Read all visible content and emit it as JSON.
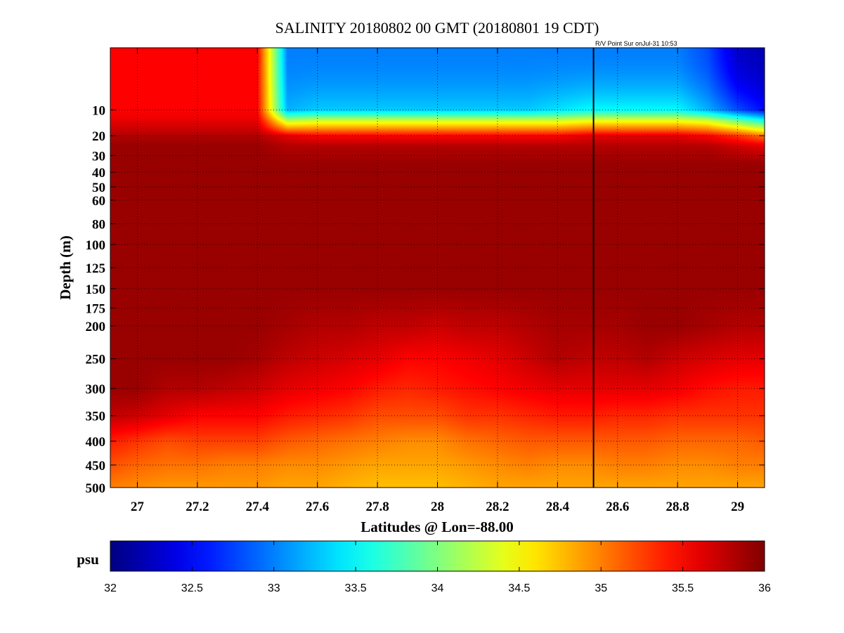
{
  "chart_data": {
    "type": "heatmap",
    "title": "SALINITY 20180802 00 GMT (20180801 19 CDT)",
    "annotation": "R/V Point Sur onJul-31 10:53",
    "xlabel": "Latitudes @ Lon=-88.00",
    "ylabel": "Depth (m)",
    "xlim": [
      26.91,
      29.09
    ],
    "ylim": [
      0,
      500
    ],
    "y_scale": "sqrt",
    "y_inverted": true,
    "grid": true,
    "x_ticks": [
      27,
      27.2,
      27.4,
      27.6,
      27.8,
      28,
      28.2,
      28.4,
      28.6,
      28.8,
      29
    ],
    "x_tick_labels": [
      "27",
      "27.2",
      "27.4",
      "27.6",
      "27.8",
      "28",
      "28.2",
      "28.4",
      "28.6",
      "28.8",
      "29"
    ],
    "y_ticks": [
      10,
      20,
      30,
      40,
      50,
      60,
      80,
      100,
      125,
      150,
      175,
      200,
      250,
      300,
      350,
      400,
      450,
      500
    ],
    "y_tick_labels": [
      "10",
      "20",
      "30",
      "40",
      "50",
      "60",
      "80",
      "100",
      "125",
      "150",
      "175",
      "200",
      "250",
      "300",
      "350",
      "400",
      "450",
      "500"
    ],
    "vertical_marker_lat": 28.52,
    "colorbar": {
      "label": "psu",
      "range": [
        32,
        36
      ],
      "colormap": "jet",
      "ticks": [
        32,
        32.5,
        33,
        33.5,
        34,
        34.5,
        35,
        35.5,
        36
      ],
      "tick_labels": [
        "32",
        "32.5",
        "33",
        "33.5",
        "34",
        "34.5",
        "35",
        "35.5",
        "36"
      ]
    },
    "grid_lats": [
      26.9,
      27.0,
      27.1,
      27.2,
      27.3,
      27.4,
      27.5,
      27.6,
      27.7,
      27.8,
      27.9,
      28.0,
      28.1,
      28.2,
      28.3,
      28.4,
      28.5,
      28.6,
      28.7,
      28.8,
      28.9,
      29.0,
      29.1
    ],
    "grid_depths": [
      0,
      10,
      14,
      20,
      25,
      35,
      50,
      100,
      150,
      200,
      250,
      300,
      350,
      400,
      450,
      500
    ],
    "salinity": [
      [
        35.5,
        35.5,
        35.5,
        35.5,
        35.5,
        35.5,
        33.0,
        33.0,
        33.0,
        33.0,
        33.0,
        33.0,
        33.0,
        33.0,
        33.0,
        33.0,
        33.0,
        33.0,
        33.0,
        33.0,
        32.8,
        32.3,
        32.2
      ],
      [
        35.5,
        35.5,
        35.5,
        35.5,
        35.5,
        35.5,
        33.2,
        33.3,
        33.3,
        33.3,
        33.3,
        33.3,
        33.3,
        33.3,
        33.3,
        33.4,
        33.5,
        33.5,
        33.5,
        33.5,
        33.2,
        32.8,
        32.5
      ],
      [
        35.6,
        35.6,
        35.6,
        35.6,
        35.6,
        35.6,
        34.3,
        34.4,
        34.4,
        34.4,
        34.4,
        34.4,
        34.4,
        34.4,
        34.4,
        34.4,
        34.5,
        34.5,
        34.5,
        34.5,
        34.4,
        34.0,
        33.6
      ],
      [
        35.8,
        35.8,
        35.8,
        35.8,
        35.8,
        35.8,
        35.6,
        35.5,
        35.5,
        35.5,
        35.5,
        35.5,
        35.5,
        35.5,
        35.5,
        35.5,
        35.6,
        35.6,
        35.6,
        35.6,
        35.5,
        35.3,
        35.0
      ],
      [
        35.9,
        35.9,
        35.9,
        35.9,
        35.9,
        35.9,
        35.8,
        35.8,
        35.8,
        35.8,
        35.8,
        35.8,
        35.8,
        35.8,
        35.8,
        35.8,
        35.8,
        35.8,
        35.8,
        35.8,
        35.8,
        35.7,
        35.6
      ],
      [
        35.9,
        35.9,
        35.9,
        35.9,
        35.9,
        35.9,
        35.9,
        35.9,
        35.9,
        35.9,
        35.9,
        35.9,
        35.9,
        35.9,
        35.9,
        35.9,
        35.9,
        35.9,
        35.9,
        35.9,
        35.9,
        35.9,
        35.9
      ],
      [
        35.9,
        35.9,
        35.9,
        35.9,
        35.9,
        35.9,
        35.9,
        35.9,
        35.9,
        35.9,
        35.9,
        35.9,
        35.9,
        35.9,
        35.9,
        35.9,
        35.9,
        35.9,
        35.9,
        35.9,
        35.9,
        35.9,
        35.9
      ],
      [
        35.9,
        35.9,
        35.9,
        35.9,
        35.9,
        35.9,
        35.9,
        35.9,
        35.9,
        35.9,
        35.9,
        35.9,
        35.9,
        35.9,
        35.9,
        35.9,
        35.9,
        35.9,
        35.9,
        35.9,
        35.9,
        35.9,
        35.9
      ],
      [
        35.9,
        35.9,
        35.9,
        35.9,
        35.9,
        35.9,
        35.9,
        35.9,
        35.9,
        35.9,
        35.9,
        35.9,
        35.9,
        35.9,
        35.9,
        35.9,
        35.9,
        35.9,
        35.9,
        35.9,
        35.9,
        35.9,
        35.9
      ],
      [
        35.9,
        35.9,
        35.9,
        35.9,
        35.9,
        35.9,
        35.85,
        35.8,
        35.8,
        35.75,
        35.75,
        35.7,
        35.75,
        35.75,
        35.8,
        35.85,
        35.85,
        35.85,
        35.9,
        35.9,
        35.85,
        35.8,
        35.8
      ],
      [
        35.9,
        35.9,
        35.9,
        35.9,
        35.9,
        35.85,
        35.75,
        35.7,
        35.65,
        35.6,
        35.5,
        35.5,
        35.55,
        35.6,
        35.7,
        35.8,
        35.75,
        35.75,
        35.8,
        35.7,
        35.65,
        35.6,
        35.6
      ],
      [
        35.9,
        35.9,
        35.8,
        35.8,
        35.75,
        35.7,
        35.6,
        35.55,
        35.5,
        35.4,
        35.35,
        35.4,
        35.45,
        35.5,
        35.55,
        35.6,
        35.6,
        35.6,
        35.6,
        35.55,
        35.45,
        35.4,
        35.4
      ],
      [
        35.75,
        35.7,
        35.6,
        35.5,
        35.5,
        35.5,
        35.4,
        35.35,
        35.3,
        35.2,
        35.2,
        35.2,
        35.3,
        35.3,
        35.35,
        35.4,
        35.4,
        35.35,
        35.35,
        35.3,
        35.3,
        35.3,
        35.3
      ],
      [
        35.4,
        35.3,
        35.2,
        35.25,
        35.25,
        35.25,
        35.15,
        35.1,
        35.05,
        35.0,
        34.95,
        34.95,
        35.05,
        35.1,
        35.15,
        35.15,
        35.15,
        35.15,
        35.15,
        35.1,
        35.1,
        35.1,
        35.15
      ],
      [
        35.2,
        35.1,
        35.05,
        35.05,
        35.0,
        35.0,
        34.95,
        34.95,
        34.9,
        34.85,
        34.85,
        34.85,
        34.9,
        34.95,
        35.0,
        34.95,
        34.95,
        35.0,
        35.0,
        34.95,
        34.95,
        35.0,
        35.0
      ],
      [
        35.0,
        34.95,
        34.9,
        34.9,
        34.9,
        34.9,
        34.85,
        34.85,
        34.8,
        34.75,
        34.75,
        34.75,
        34.8,
        34.85,
        34.85,
        34.85,
        34.85,
        34.85,
        34.85,
        34.85,
        34.85,
        34.85,
        34.85
      ]
    ]
  }
}
